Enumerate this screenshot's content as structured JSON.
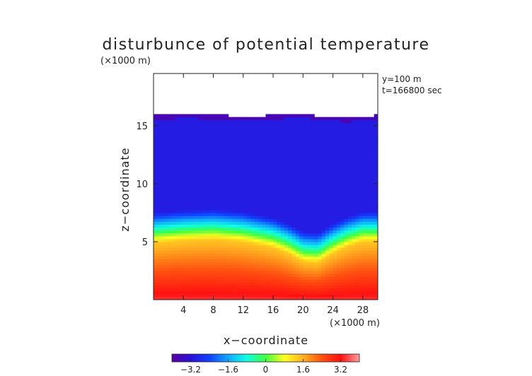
{
  "chart_data": {
    "type": "heatmap",
    "title": "disturbunce of potential temperature",
    "axis_unit_label": "(×1000 m)",
    "xlabel": "x−coordinate",
    "ylabel": "z−coordinate",
    "x_unit": "(×1000 m)",
    "z_unit": "(×1000 m)",
    "annotations": [
      "y=100 m",
      "t=166800 sec"
    ],
    "xlim": [
      0,
      30
    ],
    "ylim": [
      0,
      19.5
    ],
    "x_ticks": [
      4,
      8,
      12,
      16,
      20,
      24,
      28
    ],
    "y_ticks": [
      5,
      10,
      15
    ],
    "colorbar": {
      "range": [
        -4,
        4
      ],
      "ticks": [
        -3.2,
        -1.6,
        0,
        1.6,
        3.2
      ],
      "tick_labels": [
        "−3.2",
        "−1.6",
        "0",
        "1.6",
        "3.2"
      ],
      "colors": [
        "#5a00a0",
        "#2a10d8",
        "#1040ff",
        "#10a8ff",
        "#10ffe0",
        "#40ff40",
        "#ffff20",
        "#ffb020",
        "#ff5010",
        "#ff1010",
        "#ffa0a0"
      ]
    },
    "domain_top_profile": [
      [
        0,
        15.9
      ],
      [
        4,
        16.0
      ],
      [
        8,
        15.95
      ],
      [
        12,
        15.8
      ],
      [
        16,
        15.9
      ],
      [
        20,
        16.1
      ],
      [
        22,
        15.8
      ],
      [
        26,
        15.7
      ],
      [
        30,
        15.9
      ]
    ],
    "warm_layer_top_profile": [
      [
        0,
        4.9
      ],
      [
        4,
        5.1
      ],
      [
        8,
        5.2
      ],
      [
        12,
        5.0
      ],
      [
        16,
        4.5
      ],
      [
        18,
        4.0
      ],
      [
        20,
        3.3
      ],
      [
        22,
        3.2
      ],
      [
        24,
        4.0
      ],
      [
        26,
        4.6
      ],
      [
        28,
        5.0
      ],
      [
        30,
        5.0
      ]
    ],
    "field_levels": {
      "upper_layer_value": -3.0,
      "transition_zone_value": -0.8,
      "warm_layer_top_value": 1.4,
      "surface_value": 3.4
    }
  }
}
